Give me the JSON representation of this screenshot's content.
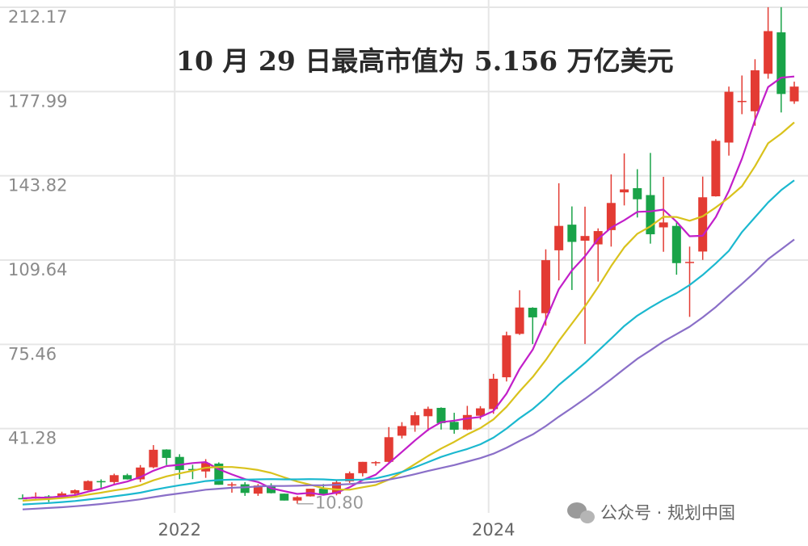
{
  "chart_data": {
    "type": "candlestick",
    "title": "10 月 29 日最高市值为 5.156 万亿美元",
    "min_label": "10.80",
    "watermark": "公众号 · 规划中国",
    "categories": [
      null,
      null,
      null,
      null,
      null,
      null,
      null,
      null,
      null,
      null,
      null,
      null,
      "2022",
      null,
      null,
      null,
      null,
      null,
      null,
      null,
      null,
      null,
      null,
      null,
      null,
      null,
      null,
      null,
      null,
      null,
      null,
      null,
      null,
      null,
      null,
      null,
      "2024",
      null,
      null,
      null,
      null,
      null,
      null,
      null,
      null,
      null,
      null,
      null,
      null,
      null,
      null,
      null,
      null,
      null,
      null,
      null,
      null,
      null,
      null,
      null
    ],
    "open": [
      13.1,
      13.0,
      13.8,
      13.4,
      15.0,
      16.3,
      20.0,
      19.6,
      22.4,
      20.7,
      25.6,
      32.8,
      29.8,
      24.9,
      23.9,
      27.1,
      18.6,
      18.7,
      14.9,
      18.2,
      14.9,
      12.1,
      13.8,
      16.9,
      14.8,
      19.9,
      23.2,
      27.5,
      27.8,
      38.4,
      42.6,
      46.3,
      49.7,
      44.0,
      40.9,
      46.5,
      49.2,
      62.1,
      79.7,
      90.3,
      88.1,
      113.6,
      124.0,
      117.5,
      116.0,
      121.8,
      137.1,
      138.8,
      136.0,
      122.9,
      123.5,
      108.5,
      113.1,
      135.5,
      157.3,
      174.1,
      170.0,
      185.2,
      202.0,
      174.0
    ],
    "high": [
      14.6,
      15.4,
      14.3,
      15.7,
      16.6,
      20.3,
      20.7,
      23.0,
      23.0,
      26.5,
      34.6,
      32.9,
      30.9,
      26.6,
      28.9,
      27.6,
      19.5,
      19.6,
      18.8,
      19.1,
      14.9,
      13.9,
      16.9,
      18.8,
      20.6,
      23.9,
      27.8,
      28.1,
      41.9,
      43.9,
      48.1,
      50.2,
      49.9,
      47.7,
      50.5,
      50.4,
      63.5,
      80.6,
      97.4,
      90.5,
      114.0,
      140.8,
      131.4,
      131.3,
      122.5,
      144.4,
      152.9,
      146.5,
      153.1,
      143.4,
      125.1,
      115.1,
      143.5,
      158.7,
      180.0,
      184.5,
      191.1,
      212.2,
      212.2,
      182.0
    ],
    "low": [
      12.8,
      12.8,
      11.5,
      13.3,
      13.9,
      16.2,
      17.3,
      18.9,
      20.6,
      19.6,
      25.2,
      26.5,
      20.8,
      20.8,
      21.3,
      18.5,
      15.3,
      14.0,
      14.0,
      15.0,
      12.1,
      10.8,
      13.7,
      14.2,
      14.2,
      19.2,
      21.9,
      26.2,
      27.4,
      37.3,
      40.0,
      40.3,
      40.9,
      39.2,
      40.7,
      45.0,
      47.3,
      60.4,
      79.3,
      75.6,
      83.0,
      101.4,
      97.5,
      75.6,
      100.9,
      115.1,
      131.8,
      126.9,
      116.3,
      113.0,
      103.7,
      86.6,
      109.7,
      135.4,
      152.0,
      168.8,
      164.1,
      183.2,
      169.5,
      173.0
    ],
    "close": [
      13.0,
      13.7,
      13.3,
      15.0,
      16.3,
      20.0,
      19.5,
      22.4,
      20.7,
      25.5,
      32.7,
      29.4,
      24.5,
      24.4,
      27.3,
      18.5,
      18.7,
      15.2,
      18.2,
      15.1,
      12.1,
      13.5,
      16.9,
      14.6,
      19.5,
      23.2,
      27.8,
      27.7,
      37.8,
      42.3,
      46.7,
      49.3,
      43.5,
      40.8,
      46.8,
      49.5,
      61.5,
      79.1,
      90.4,
      86.4,
      109.6,
      123.5,
      117.0,
      119.4,
      121.4,
      132.8,
      138.3,
      134.3,
      120.1,
      124.9,
      108.4,
      108.9,
      135.1,
      158.0,
      177.9,
      174.2,
      186.6,
      202.5,
      177.0,
      180.0
    ],
    "up_color": "#e33b33",
    "down_color": "#19a348",
    "series": [
      {
        "color": "#c21fc9",
        "values": [
          13,
          13.3,
          13.3,
          13.8,
          14.3,
          15.7,
          16.9,
          18.6,
          19.8,
          21.6,
          24.2,
          26.1,
          26.6,
          27.3,
          27.7,
          24.8,
          22.7,
          20.8,
          19.6,
          17.1,
          15.9,
          14.8,
          15.2,
          14.4,
          15.3,
          17.5,
          20.4,
          22.6,
          27.2,
          31.8,
          36.5,
          40.8,
          43.9,
          44.5,
          45.4,
          46.0,
          48.4,
          55.5,
          65.5,
          73.3,
          85.4,
          97.8,
          105.4,
          111.2,
          118.2,
          122.8,
          125.8,
          129.2,
          129.4,
          130.1,
          125.2,
          119.3,
          119.5,
          127.1,
          137.7,
          150.8,
          166.4,
          179.8,
          183.6,
          184.1
        ]
      },
      {
        "color": "#d9c21c",
        "values": [
          12,
          12.4,
          12.7,
          13.1,
          13.6,
          14.5,
          15.3,
          16.2,
          17.0,
          18.3,
          20.3,
          21.9,
          23.1,
          24.2,
          25.4,
          25.7,
          25.7,
          25.2,
          24.5,
          23.3,
          21.5,
          19.8,
          18.5,
          17.1,
          16.6,
          16.5,
          17.5,
          18.4,
          20.6,
          23.6,
          26.9,
          30.2,
          33.2,
          35.9,
          38.9,
          41.5,
          45.0,
          50.1,
          56.4,
          62.2,
          69.1,
          76.8,
          83.9,
          90.9,
          98.7,
          107.2,
          114.8,
          120.3,
          123.3,
          127.2,
          127.1,
          125.6,
          127.4,
          131.0,
          135.0,
          139.6,
          147.7,
          157.0,
          160.9,
          165.5
        ]
      },
      {
        "color": "#1bb8cf",
        "values": [
          10.5,
          10.8,
          11.1,
          11.5,
          11.9,
          12.5,
          13.1,
          13.8,
          14.5,
          15.3,
          16.4,
          17.4,
          18.3,
          19.1,
          20.0,
          20.4,
          20.6,
          20.6,
          20.7,
          20.8,
          20.7,
          20.7,
          20.8,
          20.7,
          20.4,
          20.5,
          20.6,
          21.1,
          22.3,
          23.7,
          25.6,
          27.7,
          29.8,
          31.5,
          33.0,
          34.9,
          37.6,
          41.3,
          45.5,
          49.2,
          53.8,
          59.0,
          63.4,
          67.9,
          72.8,
          77.8,
          82.9,
          87.1,
          90.4,
          93.5,
          96.2,
          99.5,
          103.6,
          108.3,
          113.4,
          121,
          127,
          133,
          138,
          142
        ]
      },
      {
        "color": "#8a6fc8",
        "values": [
          8.5,
          8.8,
          9.1,
          9.4,
          9.8,
          10.2,
          10.7,
          11.3,
          11.9,
          12.6,
          13.5,
          14.3,
          15.0,
          15.7,
          16.5,
          16.9,
          17.3,
          17.5,
          17.8,
          18.0,
          18.0,
          18.1,
          18.3,
          18.3,
          18.5,
          18.8,
          19.3,
          19.7,
          20.6,
          21.6,
          22.8,
          24.1,
          25.3,
          26.5,
          27.9,
          29.3,
          31.1,
          33.5,
          36.3,
          38.9,
          42.3,
          46.1,
          49.7,
          53.4,
          57.3,
          61.3,
          65.5,
          69.6,
          73.0,
          76.6,
          79.6,
          82.6,
          86.4,
          90.6,
          95.4,
          100.0,
          104.8,
          110.0,
          114.0,
          118.0
        ]
      }
    ],
    "ylim": [
      7.1,
      212.17
    ],
    "yticks": [
      {
        "value": 41.28,
        "label": "41.28"
      },
      75.46,
      109.64,
      143.82,
      177.99,
      212.17
    ],
    "grid": true
  }
}
